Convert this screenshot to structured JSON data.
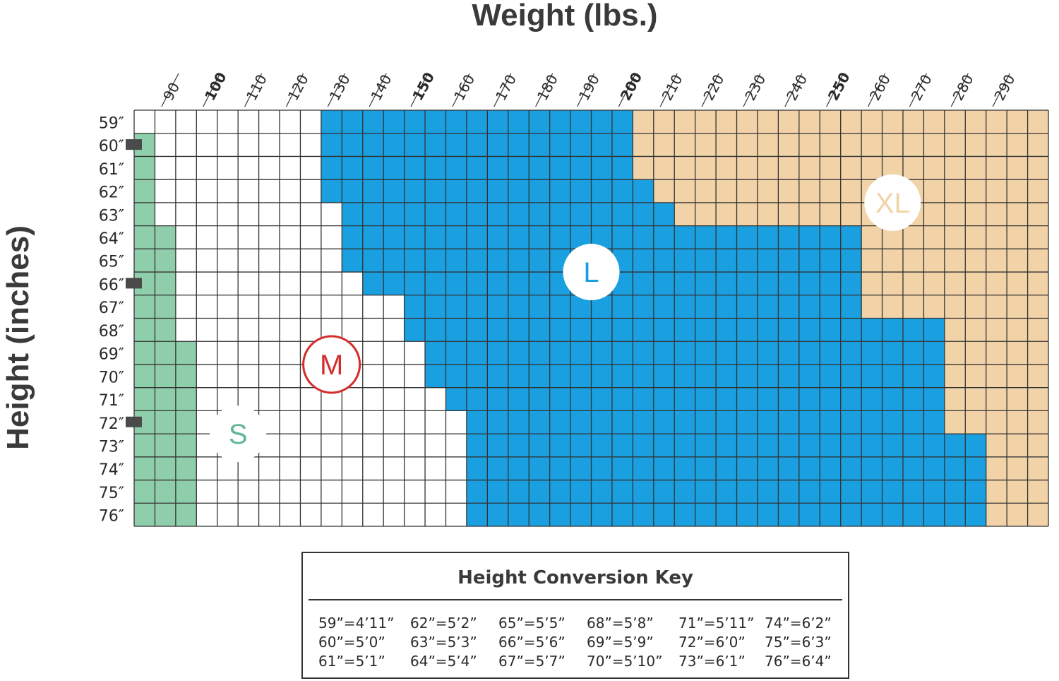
{
  "chart_data": {
    "type": "heatmap",
    "title": "Weight (lbs.)",
    "xlabel": "Weight (lbs.)",
    "ylabel": "Height (inches)",
    "x": [
      90,
      100,
      110,
      120,
      130,
      140,
      150,
      160,
      170,
      180,
      190,
      200,
      210,
      220,
      230,
      240,
      250,
      260,
      270,
      280,
      290
    ],
    "x_tick_labels": [
      "90",
      "100",
      "110",
      "120",
      "130",
      "140",
      "150",
      "160",
      "170",
      "180",
      "190",
      "200",
      "210",
      "220",
      "230",
      "240",
      "250",
      "260",
      "270",
      "280",
      "290"
    ],
    "x_bold_ticks": [
      "100",
      "150",
      "200",
      "250"
    ],
    "y": [
      59,
      60,
      61,
      62,
      63,
      64,
      65,
      66,
      67,
      68,
      69,
      70,
      71,
      72,
      73,
      74,
      75,
      76
    ],
    "y_tick_labels": [
      "59″",
      "60″",
      "61″",
      "62″",
      "63″",
      "64″",
      "65″",
      "66″",
      "67″",
      "68″",
      "69″",
      "70″",
      "71″",
      "72″",
      "73″",
      "74″",
      "75″",
      "76″"
    ],
    "y_marked_heights": [
      "60″",
      "66″",
      "72″"
    ],
    "xlim": [
      80,
      300
    ],
    "grid": true,
    "sizes": [
      {
        "name": "S",
        "color": "#8fceaa",
        "text_color": "#5fb891"
      },
      {
        "name": "M",
        "color": "#ffffff",
        "text_color": "#d42b2b"
      },
      {
        "name": "L",
        "color": "#1aa0e0",
        "text_color": "#1aa0e0"
      },
      {
        "name": "XL",
        "color": "#f2d3a8",
        "text_color": "#f0d3a8"
      }
    ],
    "size_upper_bound_lbs": [
      {
        "height": 59,
        "S_max": 80,
        "M_max": 125,
        "L_max": 200
      },
      {
        "height": 60,
        "S_max": 85,
        "M_max": 125,
        "L_max": 200
      },
      {
        "height": 61,
        "S_max": 85,
        "M_max": 125,
        "L_max": 200
      },
      {
        "height": 62,
        "S_max": 85,
        "M_max": 125,
        "L_max": 205
      },
      {
        "height": 63,
        "S_max": 85,
        "M_max": 130,
        "L_max": 210
      },
      {
        "height": 64,
        "S_max": 90,
        "M_max": 130,
        "L_max": 255
      },
      {
        "height": 65,
        "S_max": 90,
        "M_max": 130,
        "L_max": 255
      },
      {
        "height": 66,
        "S_max": 90,
        "M_max": 135,
        "L_max": 255
      },
      {
        "height": 67,
        "S_max": 90,
        "M_max": 145,
        "L_max": 255
      },
      {
        "height": 68,
        "S_max": 90,
        "M_max": 145,
        "L_max": 275
      },
      {
        "height": 69,
        "S_max": 95,
        "M_max": 150,
        "L_max": 275
      },
      {
        "height": 70,
        "S_max": 95,
        "M_max": 150,
        "L_max": 275
      },
      {
        "height": 71,
        "S_max": 95,
        "M_max": 155,
        "L_max": 275
      },
      {
        "height": 72,
        "S_max": 95,
        "M_max": 160,
        "L_max": 275
      },
      {
        "height": 73,
        "S_max": 95,
        "M_max": 160,
        "L_max": 285
      },
      {
        "height": 74,
        "S_max": 95,
        "M_max": 160,
        "L_max": 285
      },
      {
        "height": 75,
        "S_max": 95,
        "M_max": 160,
        "L_max": 285
      },
      {
        "height": 76,
        "S_max": 95,
        "M_max": 160,
        "L_max": 285
      }
    ]
  },
  "key": {
    "title": "Height Conversion Key",
    "columns": [
      [
        "59”=4’11”",
        "60”=5’0”",
        "61”=5’1”"
      ],
      [
        "62”=5’2”",
        "63”=5’3”",
        "64”=5’4”"
      ],
      [
        "65”=5’5”",
        "66”=5’6”",
        "67”=5’7”"
      ],
      [
        "68”=5’8”",
        "69”=5’9”",
        "70”=5’10”"
      ],
      [
        "71”=5’11”",
        "72”=6’0”",
        "73”=6’1”"
      ],
      [
        "74”=6’2”",
        "75”=6’3”",
        "76”=6’4”"
      ]
    ]
  }
}
